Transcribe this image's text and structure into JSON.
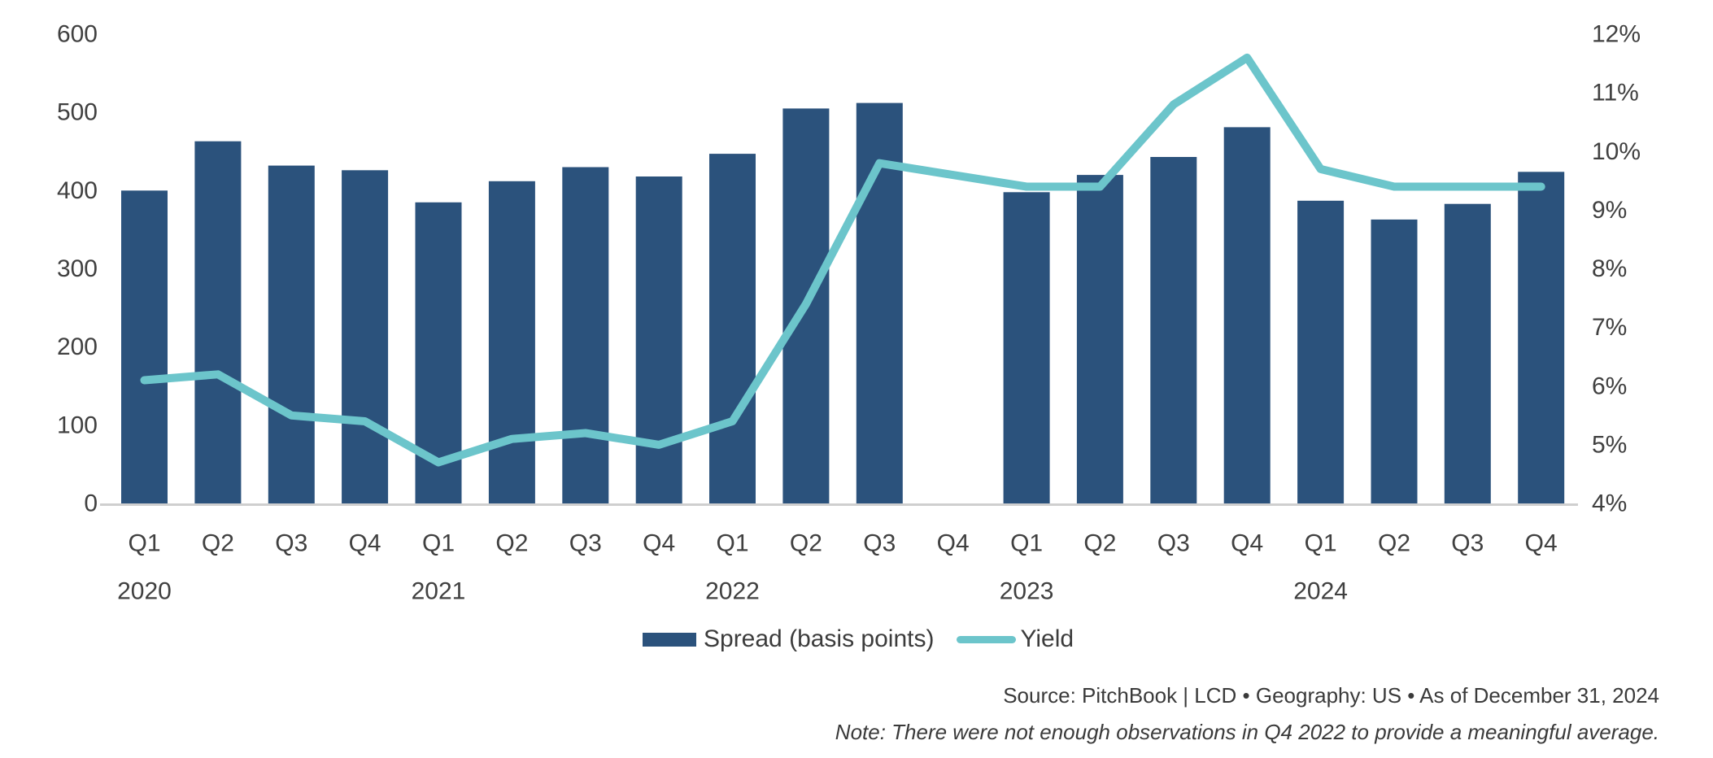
{
  "chart_data": {
    "type": "bar+line",
    "categories": [
      "Q1",
      "Q2",
      "Q3",
      "Q4",
      "Q1",
      "Q2",
      "Q3",
      "Q4",
      "Q1",
      "Q2",
      "Q3",
      "Q4",
      "Q1",
      "Q2",
      "Q3",
      "Q4",
      "Q1",
      "Q2",
      "Q3",
      "Q4"
    ],
    "years": [
      {
        "label": "2020",
        "start_index": 0
      },
      {
        "label": "2021",
        "start_index": 4
      },
      {
        "label": "2022",
        "start_index": 8
      },
      {
        "label": "2023",
        "start_index": 12
      },
      {
        "label": "2024",
        "start_index": 16
      }
    ],
    "series": [
      {
        "name": "Spread (basis points)",
        "type": "bar",
        "axis": "left",
        "color": "#2b527c",
        "values": [
          400,
          463,
          432,
          426,
          385,
          412,
          430,
          418,
          447,
          505,
          512,
          null,
          398,
          420,
          443,
          481,
          387,
          363,
          383,
          424
        ]
      },
      {
        "name": "Yield",
        "type": "line",
        "axis": "right",
        "color": "#6cc5cb",
        "values": [
          6.1,
          6.2,
          5.5,
          5.4,
          4.7,
          5.1,
          5.2,
          5.0,
          5.4,
          7.4,
          9.8,
          null,
          9.4,
          9.4,
          10.8,
          11.6,
          9.7,
          9.4,
          9.4,
          9.4
        ]
      }
    ],
    "left_axis": {
      "min": 0,
      "max": 600,
      "ticks": [
        600,
        500,
        400,
        300,
        200,
        100,
        0
      ]
    },
    "right_axis": {
      "min": 4,
      "max": 12,
      "suffix": "%",
      "ticks": [
        12,
        11,
        10,
        9,
        8,
        7,
        6,
        5,
        4
      ]
    },
    "grid": false,
    "legend_position": "bottom-center",
    "legend": {
      "spread_label": "Spread (basis points)",
      "yield_label": "Yield"
    },
    "missing_data_quarter": "Q4 2022",
    "footer": {
      "source_line": "Source: PitchBook | LCD  •  Geography: US  •  As of December 31, 2024",
      "note_line": "Note: There were not enough observations in Q4 2022 to provide a meaningful average."
    }
  }
}
